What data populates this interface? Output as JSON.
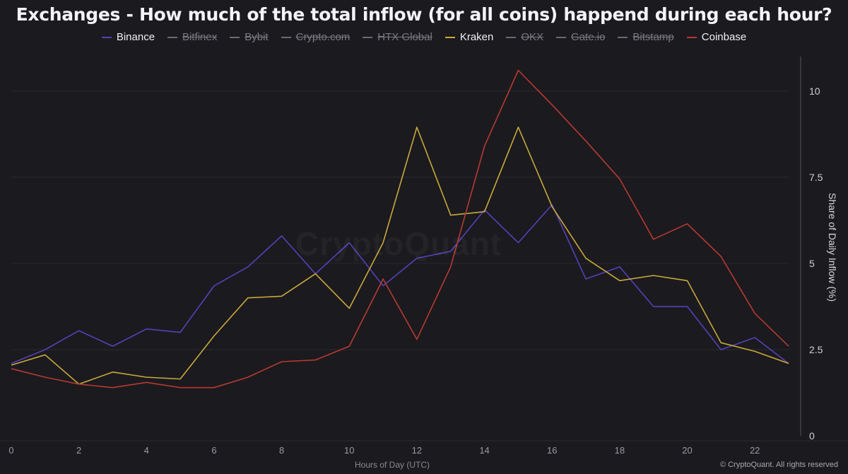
{
  "title": "Exchanges - How much of the total inflow (for all coins) happend during each hour?",
  "legend": [
    {
      "label": "Binance",
      "color": "#5740b8",
      "active": true
    },
    {
      "label": "Bitfinex",
      "color": "#6a6a70",
      "active": false
    },
    {
      "label": "Bybit",
      "color": "#6a6a70",
      "active": false
    },
    {
      "label": "Crypto.com",
      "color": "#6a6a70",
      "active": false
    },
    {
      "label": "HTX Global",
      "color": "#6a6a70",
      "active": false
    },
    {
      "label": "Kraken",
      "color": "#c9a93a",
      "active": true
    },
    {
      "label": "OKX",
      "color": "#6a6a70",
      "active": false
    },
    {
      "label": "Gate.io",
      "color": "#6a6a70",
      "active": false
    },
    {
      "label": "Bitstamp",
      "color": "#6a6a70",
      "active": false
    },
    {
      "label": "Coinbase",
      "color": "#b63a30",
      "active": true
    }
  ],
  "watermark": "CryptoQuant",
  "credit": "© CryptoQuant. All rights reserved",
  "chart_data": {
    "type": "line",
    "xlabel": "Hours of Day (UTC)",
    "ylabel": "Share of Daily Inflow (%)",
    "xlim": [
      0,
      23
    ],
    "ylim": [
      0,
      11
    ],
    "xticks": [
      0,
      2,
      4,
      6,
      8,
      10,
      12,
      14,
      16,
      18,
      20,
      22
    ],
    "xtick_labels": [
      "0",
      "2",
      "4",
      "6",
      "8",
      "10",
      "12",
      "14",
      "16",
      "18",
      "20",
      "22"
    ],
    "yticks": [
      0,
      2.5,
      5,
      7.5,
      10
    ],
    "ytick_labels": [
      "0",
      "2.5",
      "5",
      "7.5",
      "10"
    ],
    "y_axis_side": "right",
    "grid": "horizontal",
    "legend_position": "top",
    "x": [
      0,
      1,
      2,
      3,
      4,
      5,
      6,
      7,
      8,
      9,
      10,
      11,
      12,
      13,
      14,
      15,
      16,
      17,
      18,
      19,
      20,
      21,
      22,
      23
    ],
    "series": [
      {
        "name": "Binance",
        "color": "#5740b8",
        "values": [
          2.1,
          2.5,
          3.05,
          2.6,
          3.1,
          3.0,
          4.35,
          4.9,
          5.8,
          4.7,
          5.6,
          4.35,
          5.15,
          5.35,
          6.55,
          5.6,
          6.7,
          4.55,
          4.9,
          3.75,
          3.75,
          2.5,
          2.85,
          2.1
        ]
      },
      {
        "name": "Kraken",
        "color": "#c9a93a",
        "values": [
          2.05,
          2.35,
          1.5,
          1.85,
          1.7,
          1.65,
          2.9,
          4.0,
          4.05,
          4.7,
          3.7,
          5.6,
          8.95,
          6.4,
          6.5,
          8.95,
          6.65,
          5.15,
          4.5,
          4.65,
          4.5,
          2.7,
          2.45,
          2.1
        ]
      },
      {
        "name": "Coinbase",
        "color": "#b63a30",
        "values": [
          1.95,
          1.7,
          1.5,
          1.4,
          1.55,
          1.4,
          1.4,
          1.7,
          2.15,
          2.2,
          2.6,
          4.55,
          2.8,
          4.9,
          8.4,
          10.6,
          9.6,
          8.55,
          7.45,
          5.7,
          6.15,
          5.2,
          3.55,
          2.6
        ]
      }
    ]
  }
}
